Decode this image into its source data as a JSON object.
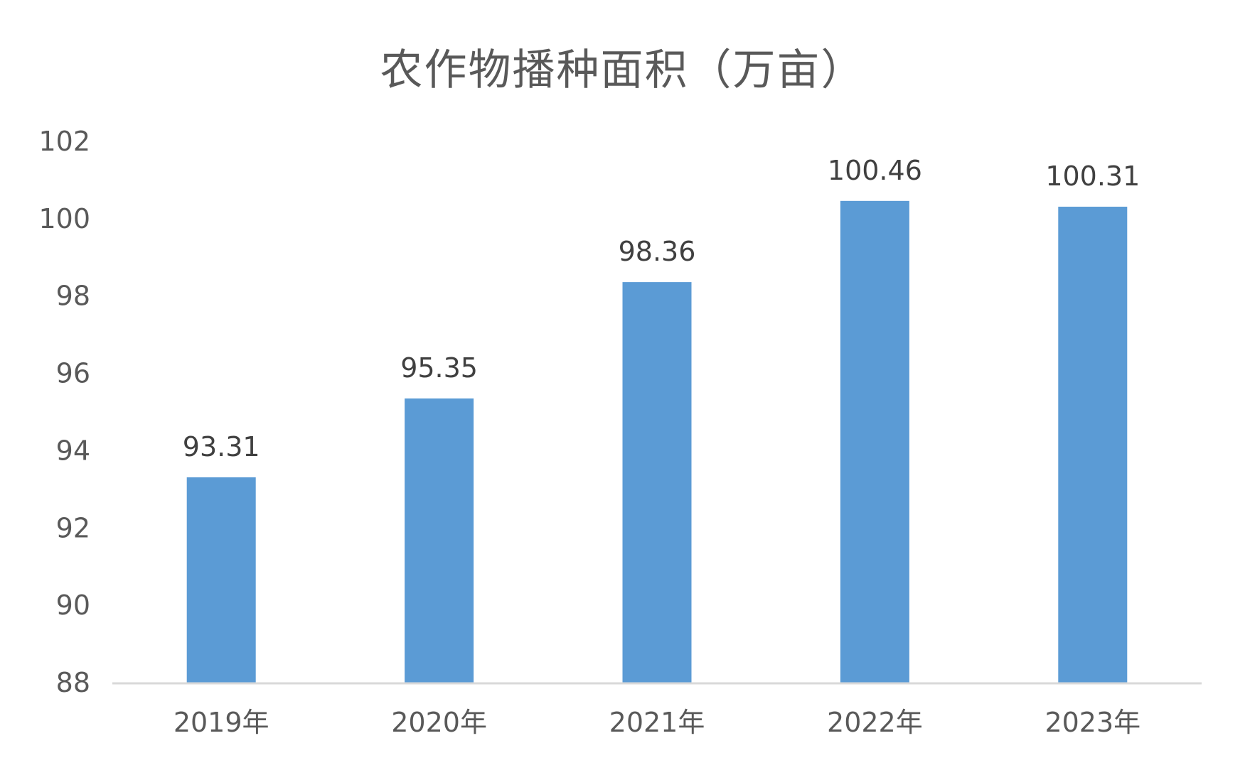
{
  "chart_data": {
    "type": "bar",
    "title": "农作物播种面积（万亩）",
    "categories": [
      "2019年",
      "2020年",
      "2021年",
      "2022年",
      "2023年"
    ],
    "values": [
      93.31,
      95.35,
      98.36,
      100.46,
      100.31
    ],
    "data_labels": [
      "93.31",
      "95.35",
      "98.36",
      "100.46",
      "100.31"
    ],
    "y_ticks": [
      "88",
      "90",
      "92",
      "94",
      "96",
      "98",
      "100",
      "102"
    ],
    "ylim": [
      88,
      102
    ],
    "xlabel": "",
    "ylabel": "",
    "grid": false,
    "legend": "none",
    "bar_color": "#5B9BD5",
    "axis_color": "#D9D9D9",
    "text_color": "#595959"
  }
}
